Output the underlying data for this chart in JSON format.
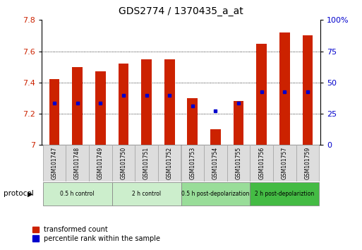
{
  "title": "GDS2774 / 1370435_a_at",
  "samples": [
    "GSM101747",
    "GSM101748",
    "GSM101749",
    "GSM101750",
    "GSM101751",
    "GSM101752",
    "GSM101753",
    "GSM101754",
    "GSM101755",
    "GSM101756",
    "GSM101757",
    "GSM101759"
  ],
  "bar_tops": [
    7.42,
    7.5,
    7.47,
    7.52,
    7.55,
    7.55,
    7.3,
    7.1,
    7.28,
    7.65,
    7.72,
    7.7
  ],
  "bar_bottom": 7.0,
  "blue_dot_y": [
    7.27,
    7.27,
    7.27,
    7.32,
    7.32,
    7.32,
    7.25,
    7.22,
    7.27,
    7.34,
    7.34,
    7.34
  ],
  "ylim": [
    7.0,
    7.8
  ],
  "yticks_left": [
    7.0,
    7.2,
    7.4,
    7.6,
    7.8
  ],
  "yticks_right": [
    0,
    25,
    50,
    75,
    100
  ],
  "ytick_labels_right": [
    "0",
    "25",
    "50",
    "75",
    "100%"
  ],
  "bar_color": "#cc2200",
  "dot_color": "#0000cc",
  "protocol_groups": [
    {
      "label": "0.5 h control",
      "start": 0,
      "end": 2,
      "color": "#cceecc"
    },
    {
      "label": "2 h control",
      "start": 3,
      "end": 5,
      "color": "#cceecc"
    },
    {
      "label": "0.5 h post-depolarization",
      "start": 6,
      "end": 8,
      "color": "#99dd99"
    },
    {
      "label": "2 h post-depolariztion",
      "start": 9,
      "end": 11,
      "color": "#44bb44"
    }
  ],
  "legend_entries": [
    {
      "label": "transformed count",
      "color": "#cc2200"
    },
    {
      "label": "percentile rank within the sample",
      "color": "#0000cc"
    }
  ],
  "tick_color_left": "#cc2200",
  "tick_color_right": "#0000cc",
  "bar_width": 0.45,
  "protocol_label": "protocol"
}
